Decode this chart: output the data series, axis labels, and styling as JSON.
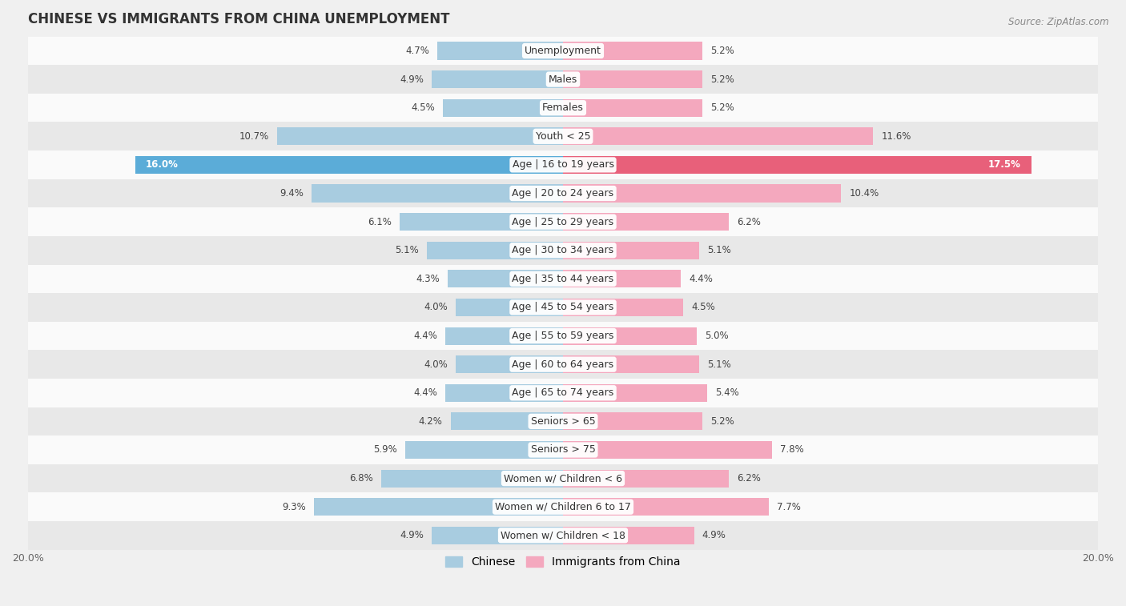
{
  "title": "CHINESE VS IMMIGRANTS FROM CHINA UNEMPLOYMENT",
  "source": "Source: ZipAtlas.com",
  "categories": [
    "Unemployment",
    "Males",
    "Females",
    "Youth < 25",
    "Age | 16 to 19 years",
    "Age | 20 to 24 years",
    "Age | 25 to 29 years",
    "Age | 30 to 34 years",
    "Age | 35 to 44 years",
    "Age | 45 to 54 years",
    "Age | 55 to 59 years",
    "Age | 60 to 64 years",
    "Age | 65 to 74 years",
    "Seniors > 65",
    "Seniors > 75",
    "Women w/ Children < 6",
    "Women w/ Children 6 to 17",
    "Women w/ Children < 18"
  ],
  "chinese_values": [
    4.7,
    4.9,
    4.5,
    10.7,
    16.0,
    9.4,
    6.1,
    5.1,
    4.3,
    4.0,
    4.4,
    4.0,
    4.4,
    4.2,
    5.9,
    6.8,
    9.3,
    4.9
  ],
  "immigrants_values": [
    5.2,
    5.2,
    5.2,
    11.6,
    17.5,
    10.4,
    6.2,
    5.1,
    4.4,
    4.5,
    5.0,
    5.1,
    5.4,
    5.2,
    7.8,
    6.2,
    7.7,
    4.9
  ],
  "chinese_color": "#a8cce0",
  "immigrants_color": "#f4a8be",
  "highlight_chinese_color": "#5bacd8",
  "highlight_immigrants_color": "#e8607a",
  "highlight_row": 4,
  "xlim": 20.0,
  "bar_height": 0.62,
  "bg_color": "#f0f0f0",
  "row_bg_colors": [
    "#fafafa",
    "#e8e8e8"
  ],
  "label_fontsize": 9.0,
  "title_fontsize": 12,
  "value_fontsize": 8.5,
  "legend_fontsize": 10
}
